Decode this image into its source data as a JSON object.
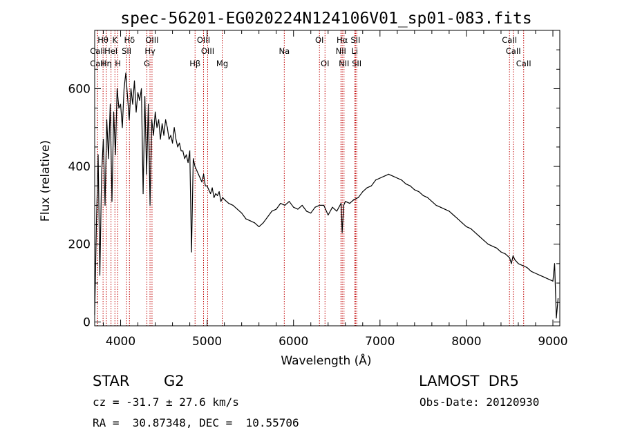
{
  "chart_data": {
    "type": "line",
    "title": "spec-56201-EG020224N124106V01_sp01-083.fits",
    "xlabel": "Wavelength (Å)",
    "ylabel": "Flux (relative)",
    "xlim": [
      3700,
      9080
    ],
    "ylim": [
      -10,
      750
    ],
    "x_ticks": [
      4000,
      5000,
      6000,
      7000,
      8000,
      9000
    ],
    "y_ticks": [
      0,
      200,
      400,
      600
    ],
    "grid": false,
    "series": [
      {
        "line_color": "#000000",
        "x": [
          3700,
          3720,
          3740,
          3760,
          3780,
          3800,
          3820,
          3840,
          3860,
          3880,
          3900,
          3920,
          3940,
          3960,
          3980,
          4000,
          4020,
          4040,
          4060,
          4080,
          4100,
          4120,
          4140,
          4160,
          4180,
          4200,
          4220,
          4240,
          4260,
          4280,
          4300,
          4320,
          4340,
          4360,
          4380,
          4400,
          4420,
          4440,
          4460,
          4480,
          4500,
          4520,
          4540,
          4560,
          4580,
          4600,
          4620,
          4640,
          4660,
          4680,
          4700,
          4720,
          4740,
          4760,
          4780,
          4800,
          4820,
          4840,
          4860,
          4880,
          4900,
          4920,
          4940,
          4960,
          4980,
          5000,
          5020,
          5040,
          5060,
          5080,
          5100,
          5120,
          5140,
          5160,
          5180,
          5200,
          5250,
          5300,
          5350,
          5400,
          5450,
          5500,
          5550,
          5600,
          5650,
          5700,
          5750,
          5800,
          5850,
          5900,
          5950,
          6000,
          6050,
          6100,
          6150,
          6200,
          6250,
          6300,
          6350,
          6400,
          6450,
          6500,
          6550,
          6563,
          6580,
          6600,
          6650,
          6700,
          6750,
          6800,
          6850,
          6900,
          6950,
          7000,
          7050,
          7100,
          7150,
          7200,
          7250,
          7300,
          7350,
          7400,
          7450,
          7500,
          7550,
          7600,
          7650,
          7700,
          7750,
          7800,
          7850,
          7900,
          7950,
          8000,
          8050,
          8100,
          8150,
          8200,
          8250,
          8300,
          8350,
          8400,
          8450,
          8500,
          8520,
          8540,
          8560,
          8600,
          8650,
          8700,
          8750,
          8800,
          8850,
          8900,
          8950,
          9000,
          9020,
          9040,
          9060
        ],
        "y": [
          20,
          250,
          430,
          120,
          380,
          470,
          300,
          520,
          420,
          560,
          310,
          540,
          430,
          600,
          550,
          560,
          500,
          600,
          640,
          580,
          520,
          600,
          560,
          620,
          540,
          590,
          570,
          600,
          330,
          580,
          380,
          560,
          300,
          520,
          480,
          540,
          500,
          520,
          470,
          510,
          480,
          520,
          500,
          470,
          480,
          460,
          500,
          470,
          450,
          460,
          440,
          440,
          420,
          430,
          410,
          440,
          180,
          420,
          400,
          390,
          380,
          370,
          360,
          380,
          350,
          350,
          340,
          330,
          345,
          320,
          330,
          325,
          335,
          310,
          320,
          315,
          305,
          300,
          290,
          280,
          265,
          260,
          255,
          245,
          255,
          270,
          285,
          290,
          305,
          300,
          310,
          295,
          290,
          300,
          285,
          280,
          295,
          300,
          300,
          275,
          295,
          285,
          305,
          230,
          300,
          310,
          305,
          315,
          320,
          335,
          345,
          350,
          365,
          370,
          375,
          380,
          375,
          370,
          365,
          355,
          350,
          340,
          335,
          325,
          320,
          310,
          300,
          295,
          290,
          285,
          275,
          265,
          255,
          245,
          240,
          230,
          220,
          210,
          200,
          195,
          190,
          180,
          175,
          165,
          150,
          170,
          160,
          150,
          145,
          140,
          130,
          125,
          120,
          115,
          110,
          105,
          150,
          10,
          60
        ]
      }
    ],
    "spectral_lines": [
      {
        "label": "Hθ",
        "x": 3797,
        "row": 1
      },
      {
        "label": "CaII",
        "x": 3733,
        "row": 2
      },
      {
        "label": "CaII",
        "x": 3733,
        "row": 3
      },
      {
        "label": "K",
        "x": 3934,
        "row": 1
      },
      {
        "label": "HeI",
        "x": 3889,
        "row": 2
      },
      {
        "label": "Hη",
        "x": 3835,
        "row": 3
      },
      {
        "label": "H",
        "x": 3968,
        "row": 3
      },
      {
        "label": "Hδ",
        "x": 4102,
        "row": 1
      },
      {
        "label": "SII",
        "x": 4069,
        "row": 2
      },
      {
        "label": "OIII",
        "x": 4363,
        "row": 1
      },
      {
        "label": "Hγ",
        "x": 4340,
        "row": 2
      },
      {
        "label": "G",
        "x": 4304,
        "row": 3
      },
      {
        "label": "Hβ",
        "x": 4861,
        "row": 3
      },
      {
        "label": "OIII",
        "x": 4959,
        "row": 1
      },
      {
        "label": "OIII",
        "x": 5007,
        "row": 2
      },
      {
        "label": "Mg",
        "x": 5175,
        "row": 3
      },
      {
        "label": "Na",
        "x": 5893,
        "row": 2
      },
      {
        "label": "OI",
        "x": 6300,
        "row": 1
      },
      {
        "label": "OI",
        "x": 6364,
        "row": 3
      },
      {
        "label": "Hα",
        "x": 6563,
        "row": 1
      },
      {
        "label": "NII",
        "x": 6548,
        "row": 2
      },
      {
        "label": "NII",
        "x": 6584,
        "row": 3
      },
      {
        "label": "SII",
        "x": 6717,
        "row": 1
      },
      {
        "label": "Li",
        "x": 6708,
        "row": 2
      },
      {
        "label": "SII",
        "x": 6731,
        "row": 3
      },
      {
        "label": "CaII",
        "x": 8498,
        "row": 1
      },
      {
        "label": "CaII",
        "x": 8542,
        "row": 2
      },
      {
        "label": "CaII",
        "x": 8662,
        "row": 3
      }
    ]
  },
  "info": {
    "object_class": "STAR",
    "subclass": "G2",
    "survey": "LAMOST  DR5",
    "cz": "cz = -31.7 ± 27.6 km/s",
    "obs_date": "Obs-Date: 20120930",
    "coords": "RA =  30.87348, DEC =  10.55706"
  }
}
